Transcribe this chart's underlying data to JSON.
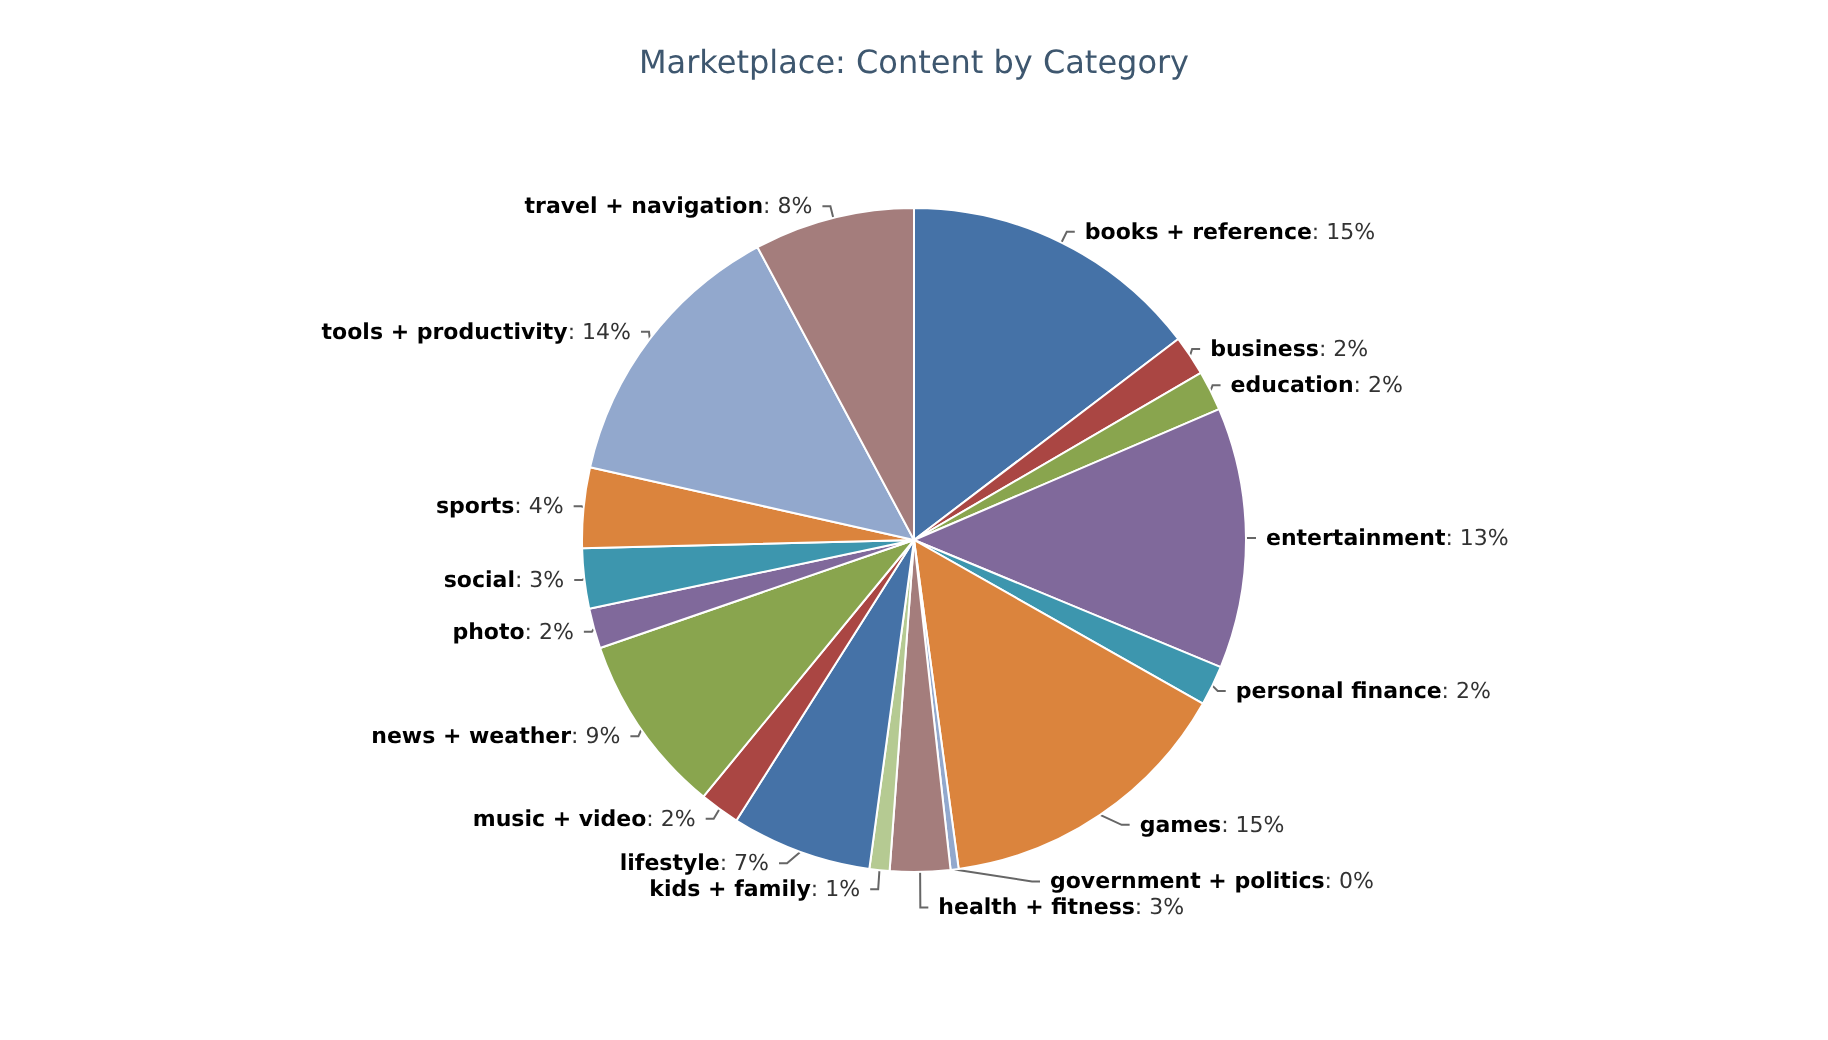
{
  "chart_data": {
    "type": "pie",
    "title": "Marketplace: Content by Category",
    "categories": [
      "books + reference",
      "business",
      "education",
      "entertainment",
      "personal finance",
      "games",
      "government + politics",
      "health + fitness",
      "kids + family",
      "lifestyle",
      "music + video",
      "news + weather",
      "photo",
      "social",
      "sports",
      "tools + productivity",
      "travel + navigation"
    ],
    "values": [
      15,
      2,
      2,
      13,
      2,
      15,
      0.4,
      3,
      1,
      7,
      2,
      9,
      2,
      3,
      4,
      14,
      8
    ],
    "value_labels": [
      ": 15%",
      ": 2%",
      ": 2%",
      ": 13%",
      ": 2%",
      ": 15%",
      ": 0%",
      ": 3%",
      ": 1%",
      ": 7%",
      ": 2%",
      ": 9%",
      ": 2%",
      ": 3%",
      ": 4%",
      ": 14%",
      ": 8%"
    ],
    "colors": [
      "#4572a7",
      "#aa4643",
      "#89a54e",
      "#80699b",
      "#3d96ae",
      "#db843d",
      "#92a8cd",
      "#a47d7c",
      "#b5ca92",
      "#4572a7",
      "#aa4643",
      "#89a54e",
      "#80699b",
      "#3d96ae",
      "#db843d",
      "#92a8cd",
      "#a47d7c"
    ],
    "legend": false
  }
}
